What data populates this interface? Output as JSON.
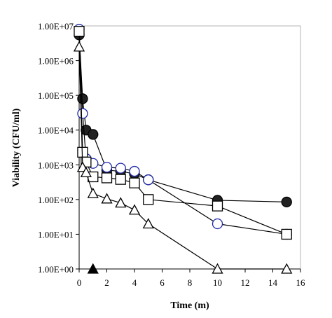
{
  "chart_data": {
    "type": "scatter",
    "xlabel": "Time (m)",
    "ylabel": "Viability (CFU/ml)",
    "xlim": [
      0,
      16
    ],
    "ylim": [
      1,
      10000000
    ],
    "y_scale": "log",
    "x_ticks": [
      0,
      2,
      4,
      6,
      8,
      10,
      12,
      14,
      16
    ],
    "x_tick_labels": [
      "0",
      "2",
      "4",
      "6",
      "8",
      "10",
      "12",
      "14",
      "16"
    ],
    "y_ticks": [
      1,
      10,
      100,
      1000,
      10000,
      100000,
      1000000,
      10000000
    ],
    "y_tick_labels": [
      "1.00E+00",
      "1.00E+01",
      "1.00E+02",
      "1.00E+03",
      "1.00E+04",
      "1.00E+05",
      "1.00E+06",
      "1.00E+07"
    ],
    "grid": false,
    "legend": "none",
    "series": [
      {
        "marker": "filled-circle",
        "color": "#000000",
        "fill": "#222222",
        "connected": true,
        "points": [
          [
            0,
            5500000
          ],
          [
            0.25,
            80000
          ],
          [
            0.5,
            10000
          ],
          [
            1,
            7500
          ],
          [
            2,
            700
          ],
          [
            3,
            650
          ],
          [
            4,
            550
          ],
          [
            5,
            370
          ],
          [
            10,
            95
          ],
          [
            15,
            85
          ]
        ]
      },
      {
        "marker": "open-circle",
        "color": "#1f2aa8",
        "fill": "#ffffff",
        "connected": true,
        "points": [
          [
            0,
            8000000
          ],
          [
            0.25,
            30000
          ],
          [
            0.5,
            1500
          ],
          [
            1,
            1100
          ],
          [
            2,
            850
          ],
          [
            3,
            800
          ],
          [
            4,
            650
          ],
          [
            5,
            370
          ],
          [
            10,
            20
          ],
          [
            15,
            10
          ]
        ]
      },
      {
        "marker": "open-square",
        "color": "#000000",
        "fill": "#ffffff",
        "connected": true,
        "points": [
          [
            0,
            7000000
          ],
          [
            0.25,
            2300
          ],
          [
            0.5,
            1200
          ],
          [
            1,
            450
          ],
          [
            2,
            420
          ],
          [
            3,
            380
          ],
          [
            4,
            300
          ],
          [
            5,
            100
          ],
          [
            10,
            65
          ],
          [
            15,
            10
          ]
        ]
      },
      {
        "marker": "open-triangle",
        "color": "#000000",
        "fill": "#ffffff",
        "connected": true,
        "points": [
          [
            0,
            2500000
          ],
          [
            0.25,
            850
          ],
          [
            0.5,
            600
          ],
          [
            1,
            150
          ],
          [
            2,
            105
          ],
          [
            3,
            80
          ],
          [
            4,
            50
          ],
          [
            5,
            20
          ],
          [
            10,
            1
          ],
          [
            15,
            1
          ]
        ]
      },
      {
        "marker": "filled-triangle",
        "color": "#000000",
        "fill": "#000000",
        "connected": false,
        "points": [
          [
            1,
            1
          ]
        ]
      }
    ]
  }
}
